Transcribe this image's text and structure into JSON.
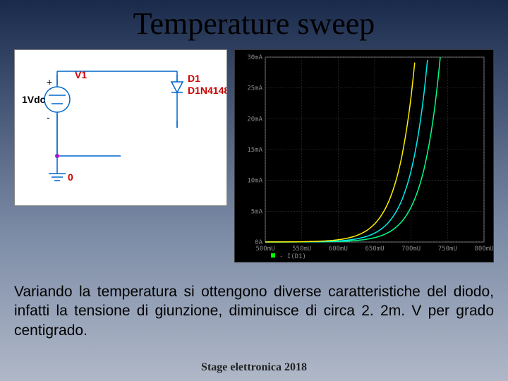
{
  "title": "Temperature sweep",
  "circuit": {
    "source_value": "1Vdc",
    "source_name": "V1",
    "diode_name": "D1",
    "diode_model": "D1N4148",
    "ground_label": "0",
    "plus_label": "+",
    "minus_label": "-",
    "wire_color": "#0066cc",
    "label_color_red": "#cc0000",
    "label_color_black": "#000000"
  },
  "chart": {
    "background": "#000000",
    "grid_color": "#444444",
    "axis_color": "#888888",
    "text_color": "#888888",
    "xlabel": "I(D1)",
    "xlim": [
      0.5,
      0.85
    ],
    "xticks": [
      "500mU",
      "550mU",
      "600mU",
      "650mU",
      "700mU",
      "750mU",
      "800mU"
    ],
    "ylim": [
      0,
      30
    ],
    "yticks": [
      "0A",
      "5mA",
      "10mA",
      "15mA",
      "20mA",
      "25mA",
      "30mA"
    ],
    "curves": [
      {
        "color": "#00ff88",
        "shift": 0.78
      },
      {
        "color": "#00eeee",
        "shift": 0.76
      },
      {
        "color": "#ffee00",
        "shift": 0.74
      }
    ]
  },
  "body": "Variando la temperatura si ottengono diverse caratteristiche del diodo, infatti la tensione di giunzione, diminuisce di circa 2. 2m. V per grado centigrado.",
  "footer": "Stage elettronica 2018"
}
